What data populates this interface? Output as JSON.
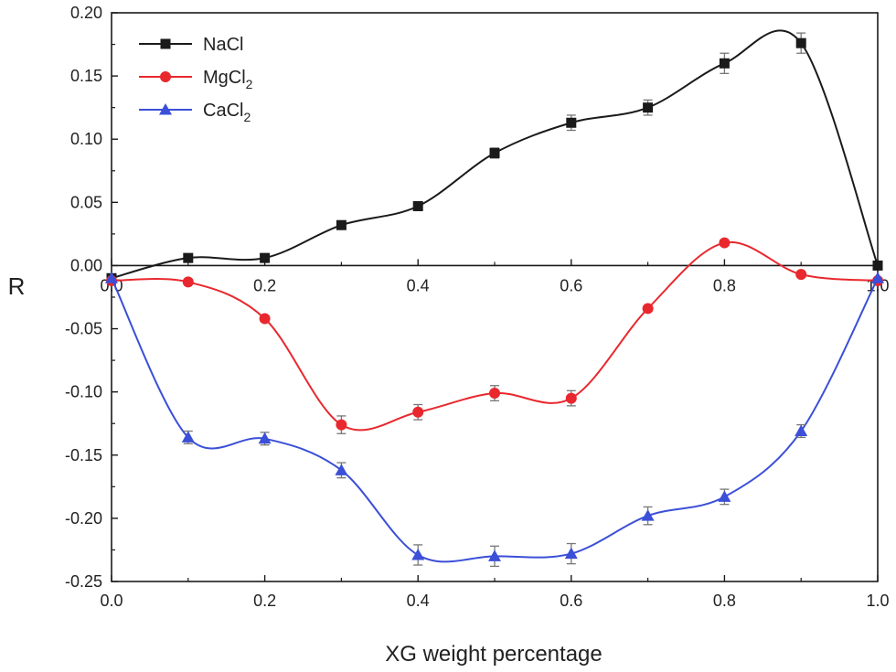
{
  "chart_data": {
    "type": "line",
    "title": "",
    "xlabel": "XG weight percentage",
    "ylabel": "R",
    "xlim": [
      0.0,
      1.0
    ],
    "ylim": [
      -0.25,
      0.2
    ],
    "x_ticks": [
      "0.0",
      "0.2",
      "0.4",
      "0.6",
      "0.8",
      "1.0"
    ],
    "y_ticks": [
      "0.20",
      "0.15",
      "0.10",
      "0.05",
      "0.00",
      "-0.05",
      "-0.10",
      "-0.15",
      "-0.20",
      "-0.25"
    ],
    "grid": false,
    "legend_position": "top-left",
    "x": [
      0.0,
      0.1,
      0.2,
      0.3,
      0.4,
      0.5,
      0.6,
      0.7,
      0.8,
      0.9,
      1.0
    ],
    "series": [
      {
        "name": "NaCl",
        "legend_main": "NaCl",
        "legend_sub": "",
        "marker": "square",
        "color": "#1a1a1a",
        "values": [
          -0.01,
          0.006,
          0.006,
          0.032,
          0.047,
          0.089,
          0.113,
          0.125,
          0.16,
          0.176,
          0.0
        ],
        "errors": [
          0.0,
          0.002,
          0.002,
          0.003,
          0.003,
          0.004,
          0.006,
          0.006,
          0.008,
          0.008,
          0.0
        ]
      },
      {
        "name": "MgCl2",
        "legend_main": "MgCl",
        "legend_sub": "2",
        "marker": "circle",
        "color": "#e8282e",
        "values": [
          -0.012,
          -0.013,
          -0.042,
          -0.126,
          -0.116,
          -0.101,
          -0.105,
          -0.034,
          0.018,
          -0.007,
          -0.012
        ],
        "errors": [
          0.0,
          0.002,
          0.002,
          0.007,
          0.006,
          0.006,
          0.006,
          0.002,
          0.002,
          0.002,
          0.0
        ]
      },
      {
        "name": "CaCl2",
        "legend_main": "CaCl",
        "legend_sub": "2",
        "marker": "triangle",
        "color": "#3b4fd8",
        "values": [
          -0.01,
          -0.136,
          -0.137,
          -0.162,
          -0.229,
          -0.23,
          -0.228,
          -0.198,
          -0.183,
          -0.131,
          -0.01
        ],
        "errors": [
          0.0,
          0.005,
          0.005,
          0.006,
          0.008,
          0.008,
          0.008,
          0.007,
          0.006,
          0.005,
          0.0
        ]
      }
    ]
  }
}
